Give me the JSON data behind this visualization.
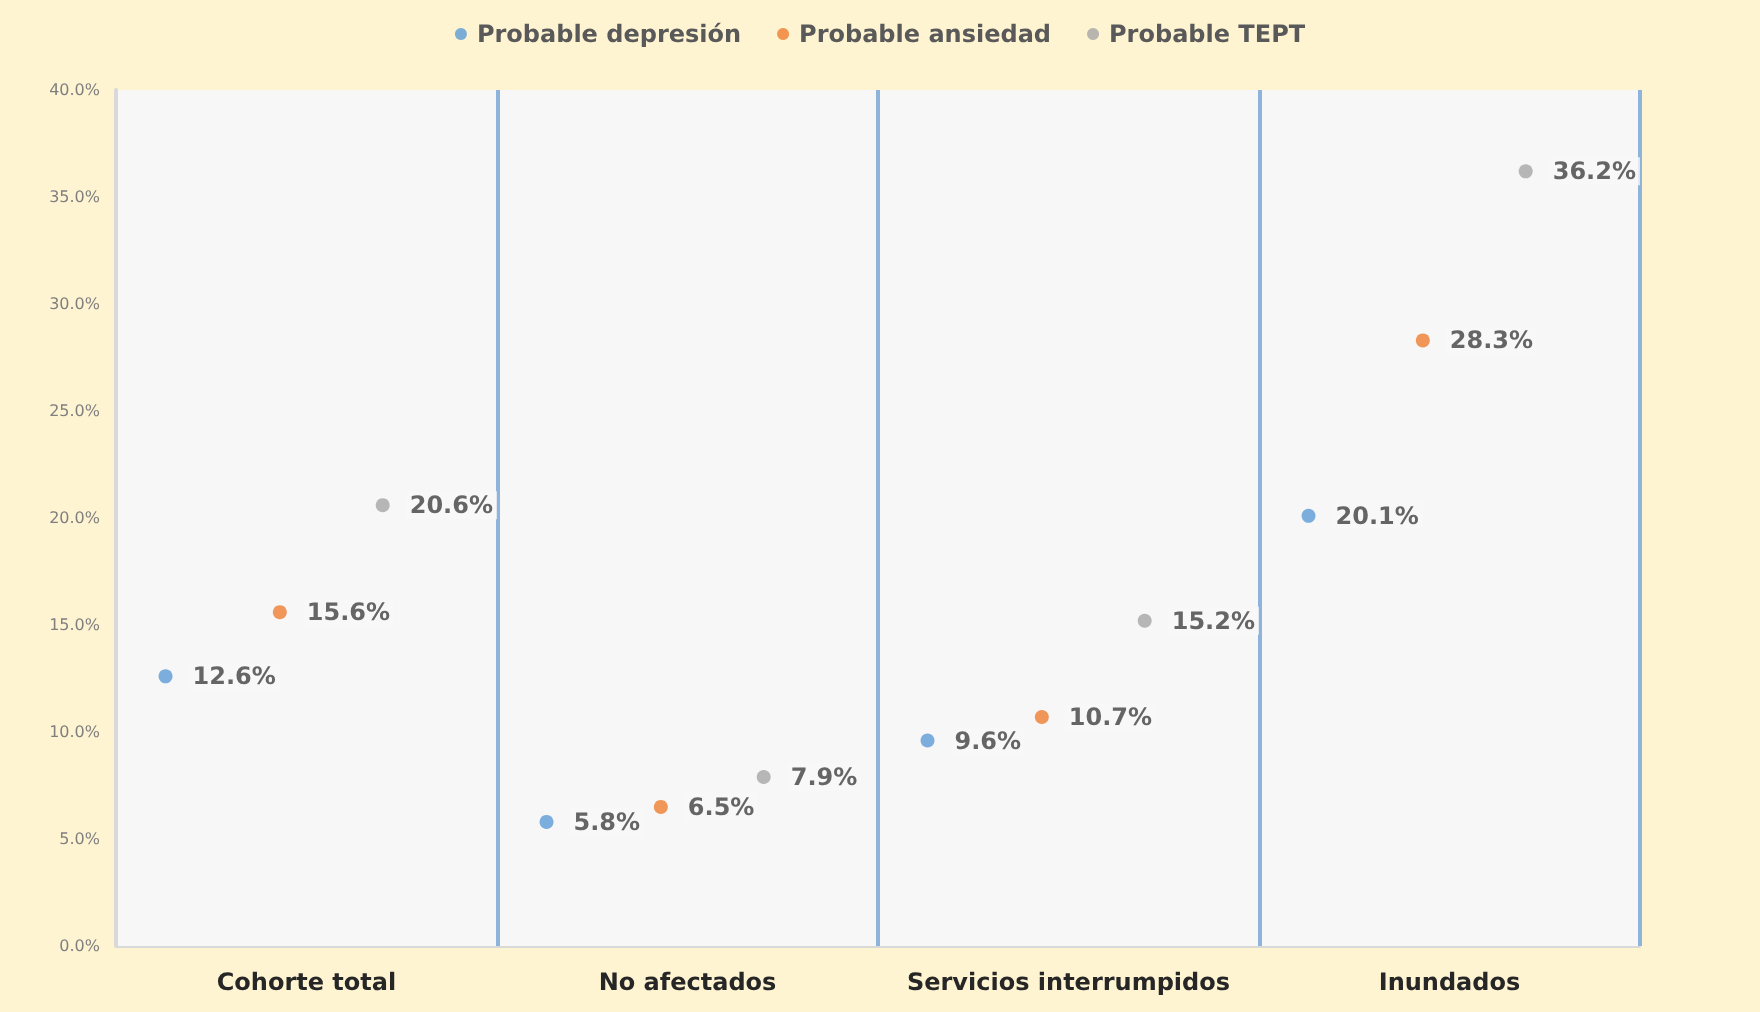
{
  "chart_data": {
    "type": "scatter",
    "categories": [
      "Cohorte total",
      "No afectados",
      "Servicios interrumpidos",
      "Inundados"
    ],
    "series": [
      {
        "name": "Probable depresión",
        "color": "#5b9bd5",
        "values": [
          12.6,
          5.8,
          9.6,
          20.1
        ],
        "value_labels": [
          "12.6%",
          "5.8%",
          "9.6%",
          "20.1%"
        ]
      },
      {
        "name": "Probable ansiedad",
        "color": "#ed7d31",
        "values": [
          15.6,
          6.5,
          10.7,
          28.3
        ],
        "value_labels": [
          "15.6%",
          "6.5%",
          "10.7%",
          "28.3%"
        ]
      },
      {
        "name": "Probable TEPT",
        "color": "#a5a5a5",
        "values": [
          20.6,
          7.9,
          15.2,
          36.2
        ],
        "value_labels": [
          "20.6%",
          "7.9%",
          "15.2%",
          "36.2%"
        ]
      }
    ],
    "ylim": [
      0,
      40
    ],
    "yticks": [
      {
        "value": 0,
        "label": "0.0%"
      },
      {
        "value": 5,
        "label": "5.0%"
      },
      {
        "value": 10,
        "label": "10.0%"
      },
      {
        "value": 15,
        "label": "15.0%"
      },
      {
        "value": 20,
        "label": "20.0%"
      },
      {
        "value": 25,
        "label": "25.0%"
      },
      {
        "value": 30,
        "label": "30.0%"
      },
      {
        "value": 35,
        "label": "35.0%"
      },
      {
        "value": 40,
        "label": "40.0%"
      }
    ],
    "grid": "x",
    "legend": "top",
    "marker": "circle"
  }
}
